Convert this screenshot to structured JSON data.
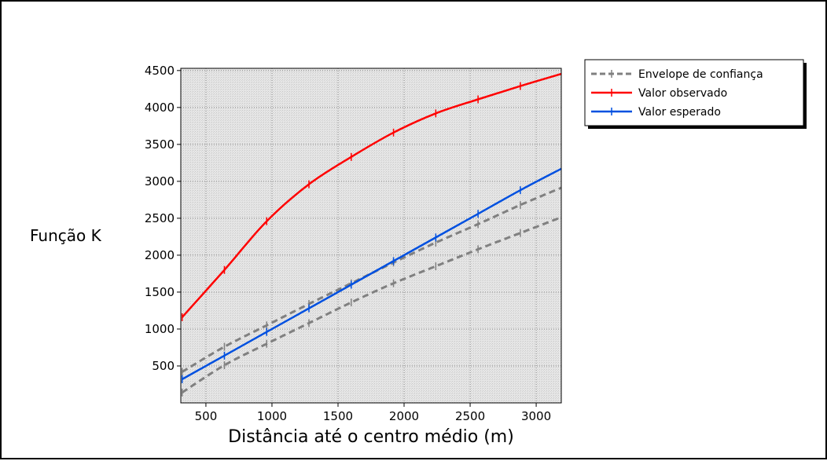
{
  "chart_data": {
    "type": "line",
    "xlabel": "Distância até o centro médio (m)",
    "ylabel": "Função K",
    "xlim": [
      310,
      3190
    ],
    "ylim": [
      0,
      4530
    ],
    "xticks": [
      500,
      1000,
      1500,
      2000,
      2500,
      3000
    ],
    "yticks": [
      500,
      1000,
      1500,
      2000,
      2500,
      3000,
      3500,
      4000,
      4500
    ],
    "grid": true,
    "legend_position": "top-right outside",
    "x": [
      320,
      640,
      960,
      1280,
      1600,
      1920,
      2240,
      2560,
      2880,
      3200
    ],
    "series": [
      {
        "name": "Envelope de confiança",
        "style": "dashed",
        "color": "#808080",
        "values": [
          420,
          760,
          1050,
          1340,
          1620,
          1900,
          2170,
          2420,
          2680,
          2920
        ]
      },
      {
        "name": "",
        "style": "dashed",
        "color": "#808080",
        "values": [
          140,
          510,
          800,
          1080,
          1360,
          1620,
          1850,
          2080,
          2300,
          2520
        ]
      },
      {
        "name": "Valor observado",
        "style": "solid",
        "color": "#ff0000",
        "values": [
          1160,
          1800,
          2460,
          2960,
          3330,
          3660,
          3920,
          4110,
          4290,
          4460
        ]
      },
      {
        "name": "Valor esperado",
        "style": "solid",
        "color": "#0050e0",
        "values": [
          320,
          640,
          960,
          1280,
          1600,
          1920,
          2240,
          2560,
          2880,
          3180
        ]
      }
    ]
  }
}
